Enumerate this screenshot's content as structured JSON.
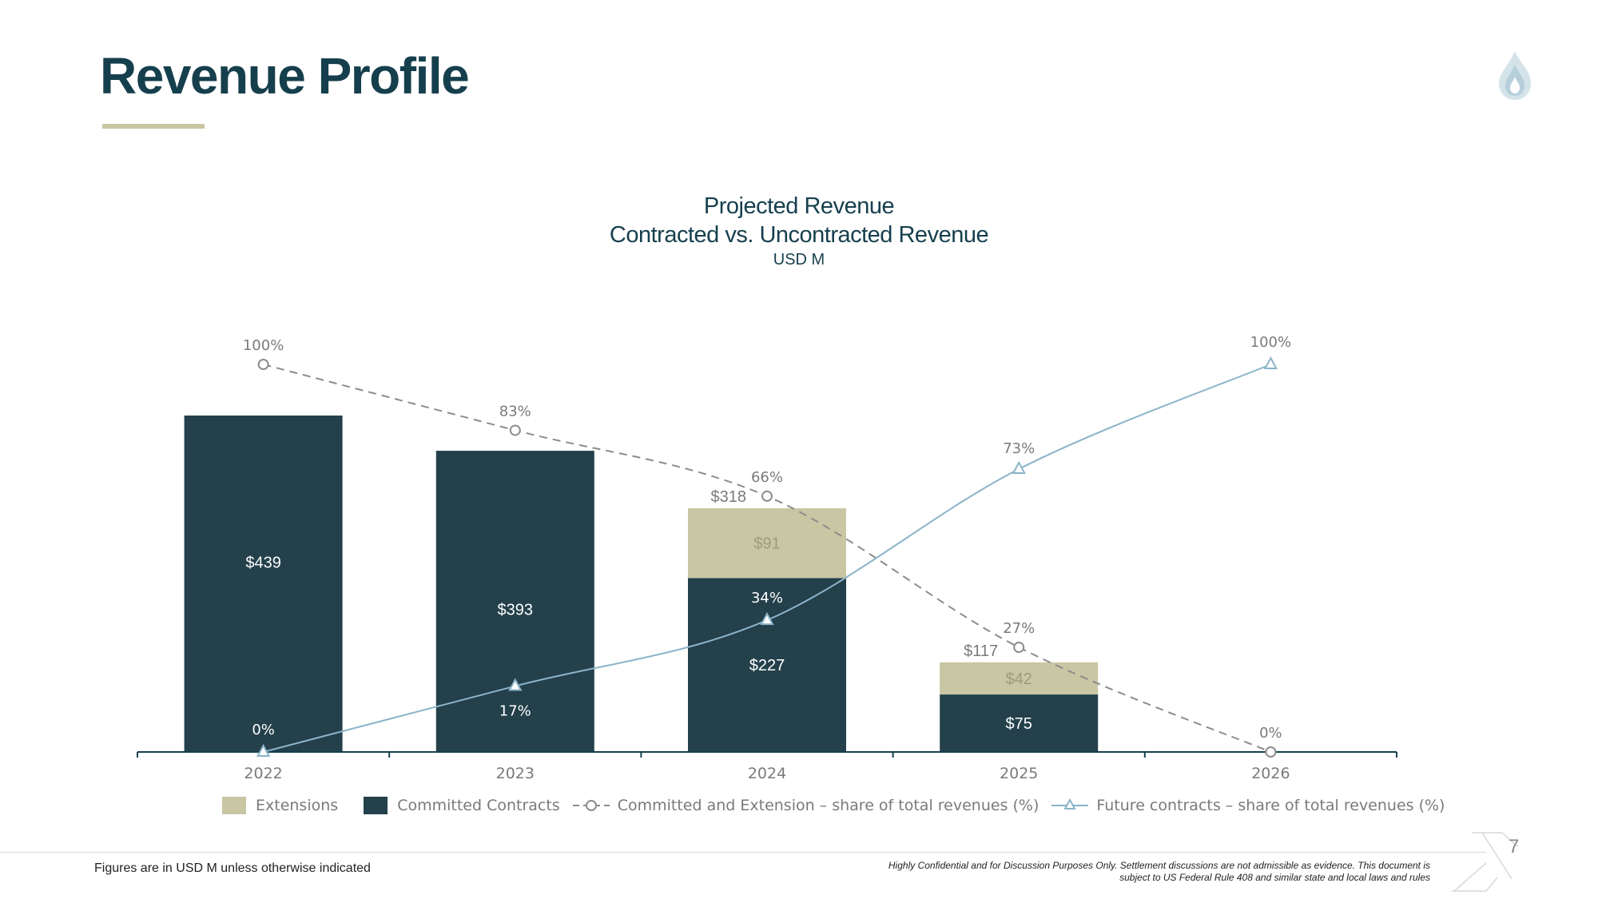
{
  "page": {
    "title": "Revenue Profile",
    "page_number": "7",
    "footnote": "Figures are in USD M unless otherwise indicated",
    "disclaimer_line1": "Highly Confidential and for Discussion Purposes Only. Settlement discussions are not admissible as evidence. This document is",
    "disclaimer_line2": "subject to US Federal Rule 408 and similar state and local laws and rules"
  },
  "colors": {
    "committed": "#23404b",
    "extensions": "#c9c6a3",
    "committed_ext_line": "#8c8c8c",
    "future_line": "#8cb4c9",
    "axis": "#163f4d",
    "title": "#163f4d"
  },
  "chart_data": {
    "type": "bar",
    "title": "Projected Revenue",
    "subtitle": "Contracted vs. Uncontracted Revenue",
    "unit_label": "USD M",
    "categories": [
      "2022",
      "2023",
      "2024",
      "2025",
      "2026"
    ],
    "stacked": true,
    "grid": false,
    "legend_position": "bottom",
    "series": [
      {
        "name": "Extensions",
        "kind": "bar",
        "values": [
          0,
          0,
          91,
          42,
          0
        ],
        "labels": [
          "",
          "",
          "$91",
          "$42",
          ""
        ]
      },
      {
        "name": "Committed Contracts",
        "kind": "bar",
        "values": [
          439,
          393,
          227,
          75,
          0
        ],
        "labels": [
          "$439",
          "$393",
          "$227",
          "$75",
          ""
        ]
      },
      {
        "name": "Committed and Extension – share of total revenues (%)",
        "kind": "line",
        "style": "dashed-circle",
        "values": [
          100,
          83,
          66,
          27,
          0
        ],
        "labels": [
          "100%",
          "83%",
          "66%",
          "27%",
          "0%"
        ]
      },
      {
        "name": "Future contracts – share of total revenues (%)",
        "kind": "line",
        "style": "solid-triangle",
        "values": [
          0,
          17,
          34,
          73,
          100
        ],
        "labels": [
          "0%",
          "17%",
          "34%",
          "73%",
          "100%"
        ]
      }
    ],
    "totals": [
      439,
      393,
      318,
      117,
      0
    ],
    "total_labels": [
      "",
      "",
      "$318",
      "$117",
      ""
    ],
    "bar_ylim": [
      0,
      439
    ],
    "pct_ylim": [
      0,
      100
    ]
  }
}
